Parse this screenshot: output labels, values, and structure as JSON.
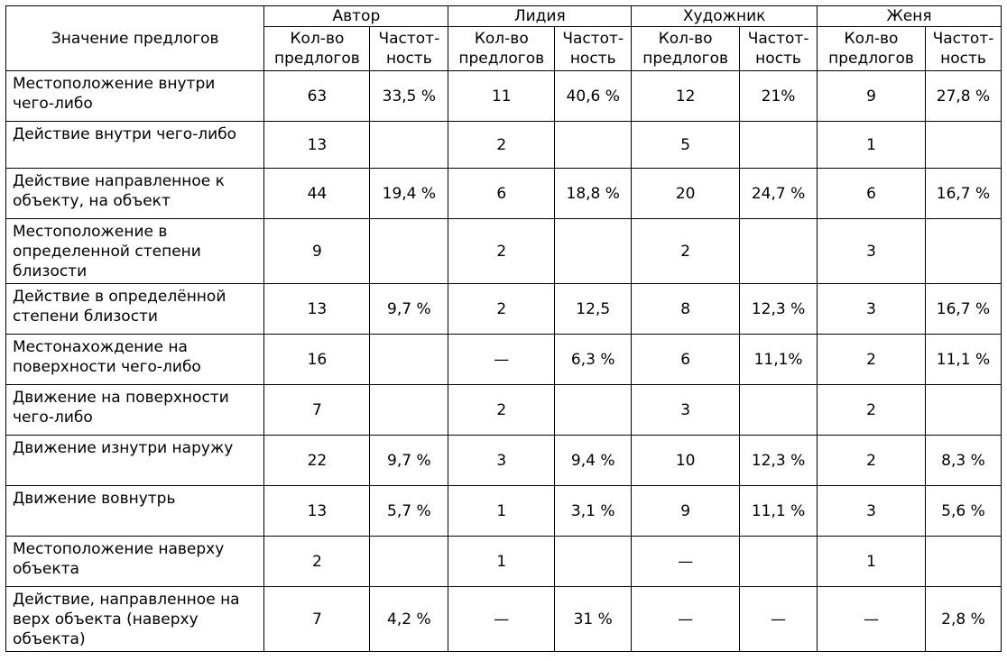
{
  "table": {
    "label_header": "Значение предлогов",
    "groups": [
      "Автор",
      "Лидия",
      "Художник",
      "Женя"
    ],
    "sub_count_l1": "Кол-во",
    "sub_count_l2": "предлогов",
    "sub_freq_l1": "Частот-",
    "sub_freq_l2": "ность",
    "rows": [
      {
        "label": "Местоположение внутри чего-либо",
        "cells": [
          "63",
          "33,5 %",
          "11",
          "40,6 %",
          "12",
          "21%",
          "9",
          "27,8 %"
        ]
      },
      {
        "label": "Действие внутри чего-либо",
        "cells": [
          "13",
          "",
          "2",
          "",
          "5",
          "",
          "1",
          ""
        ]
      },
      {
        "label": "Действие направленное к объекту, на объект",
        "cells": [
          "44",
          "19,4 %",
          "6",
          "18,8 %",
          "20",
          "24,7 %",
          "6",
          "16,7 %"
        ]
      },
      {
        "label": "Местоположение в определенной степени близости",
        "cells": [
          "9",
          "",
          "2",
          "",
          "2",
          "",
          "3",
          ""
        ]
      },
      {
        "label": "Действие в определённой степени близости",
        "cells": [
          "13",
          "9,7 %",
          "2",
          "12,5",
          "8",
          "12,3 %",
          "3",
          "16,7 %"
        ]
      },
      {
        "label": "Местонахождение на поверхности чего-либо",
        "cells": [
          "16",
          "",
          "—",
          "6,3 %",
          "6",
          "11,1%",
          "2",
          "11,1 %"
        ]
      },
      {
        "label": "Движение на поверхности чего-либо",
        "cells": [
          "7",
          "",
          "2",
          "",
          "3",
          "",
          "2",
          ""
        ]
      },
      {
        "label": "Движение изнутри наружу",
        "cells": [
          "22",
          "9,7 %",
          "3",
          "9,4 %",
          "10",
          "12,3 %",
          "2",
          "8,3 %"
        ]
      },
      {
        "label": "Движение вовнутрь",
        "cells": [
          "13",
          "5,7 %",
          "1",
          "3,1 %",
          "9",
          "11,1 %",
          "3",
          "5,6 %"
        ]
      },
      {
        "label": "Местоположение наверху объекта",
        "cells": [
          "2",
          "",
          "1",
          "",
          "—",
          "",
          "1",
          ""
        ]
      },
      {
        "label": "Действие, направленное на верх объекта (наверху объекта)",
        "cells": [
          "7",
          "4,2 %",
          "—",
          "31 %",
          "—",
          "—",
          "—",
          "2,8 %"
        ]
      }
    ]
  }
}
